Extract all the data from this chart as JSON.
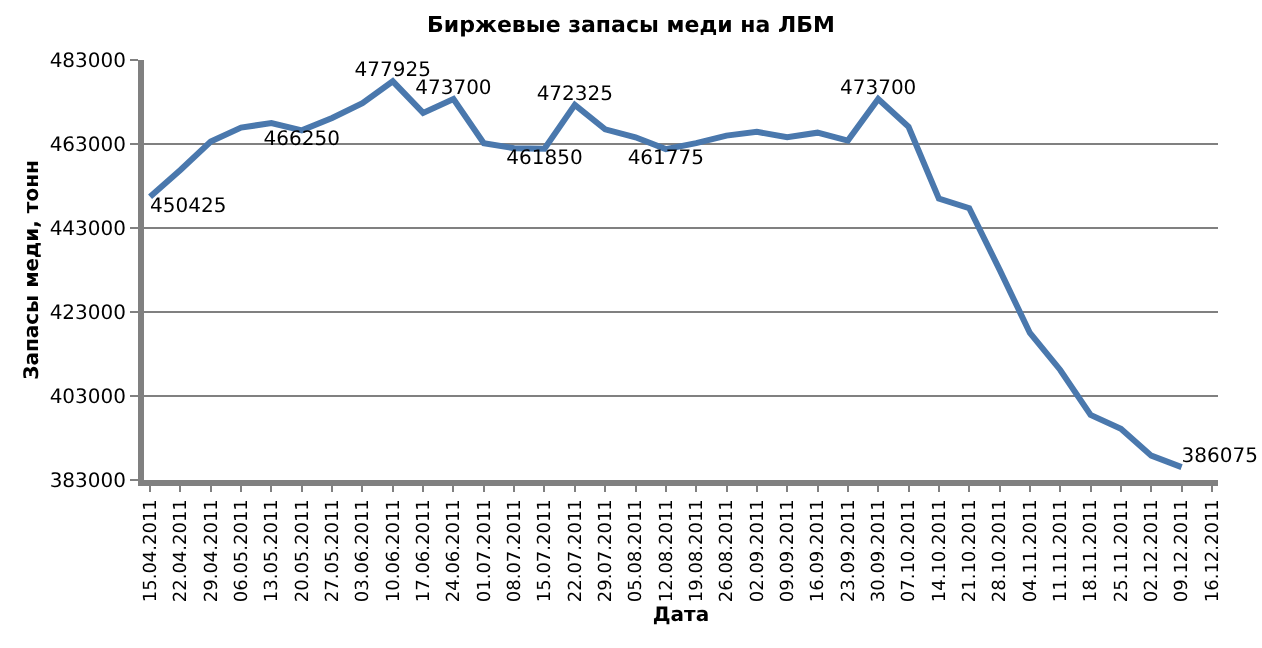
{
  "chart_data": {
    "type": "line",
    "title": "Биржевые запасы меди на ЛБМ",
    "xlabel": "Дата",
    "ylabel": "Запасы меди, тонн",
    "categories": [
      "15.04.2011",
      "22.04.2011",
      "29.04.2011",
      "06.05.2011",
      "13.05.2011",
      "20.05.2011",
      "27.05.2011",
      "03.06.2011",
      "10.06.2011",
      "17.06.2011",
      "24.06.2011",
      "01.07.2011",
      "08.07.2011",
      "15.07.2011",
      "22.07.2011",
      "29.07.2011",
      "05.08.2011",
      "12.08.2011",
      "19.08.2011",
      "26.08.2011",
      "02.09.2011",
      "09.09.2011",
      "16.09.2011",
      "23.09.2011",
      "30.09.2011",
      "07.10.2011",
      "14.10.2011",
      "21.10.2011",
      "28.10.2011",
      "04.11.2011",
      "11.11.2011",
      "18.11.2011",
      "25.11.2011",
      "02.12.2011",
      "09.12.2011",
      "16.12.2011"
    ],
    "series": [
      {
        "color": "#4a78ad",
        "values": [
          450425,
          456800,
          463600,
          466900,
          468000,
          466250,
          469200,
          472700,
          477925,
          470400,
          473700,
          463200,
          462000,
          461850,
          472325,
          466500,
          464600,
          461775,
          463200,
          465000,
          465900,
          464600,
          465700,
          463800,
          473700,
          467100,
          450000,
          447700,
          433100,
          418000,
          409200,
          398500,
          395200,
          388800,
          386075,
          null
        ],
        "value_labels": [
          "450425",
          null,
          null,
          null,
          null,
          "466250",
          null,
          null,
          "477925",
          null,
          "473700",
          null,
          null,
          "461850",
          "472325",
          null,
          null,
          "461775",
          null,
          null,
          null,
          null,
          null,
          null,
          "473700",
          null,
          null,
          null,
          null,
          null,
          null,
          null,
          null,
          null,
          "386075",
          null
        ]
      }
    ],
    "ylim": [
      383000,
      483000
    ],
    "yticks": [
      383000,
      403000,
      423000,
      443000,
      463000,
      483000
    ],
    "grid": "y",
    "marker": "none",
    "line_style": "solid"
  }
}
